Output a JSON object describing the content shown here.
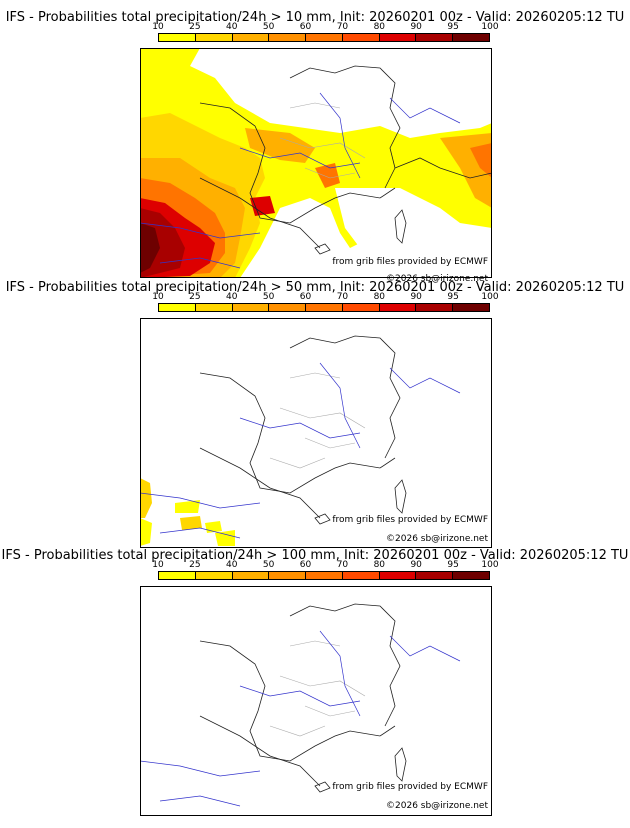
{
  "colorbar": {
    "ticks": [
      "10",
      "25",
      "40",
      "50",
      "60",
      "70",
      "80",
      "90",
      "95",
      "100"
    ],
    "colors": [
      "#ffff00",
      "#ffd700",
      "#ffb000",
      "#ff9000",
      "#ff7400",
      "#ff4a00",
      "#dd0000",
      "#a80000",
      "#6e0000"
    ]
  },
  "colors": {
    "border": "#000000",
    "country_border": "#222222",
    "region_border": "#aaaaaa",
    "rivers": "#3333cc"
  },
  "panels": [
    {
      "title": "IFS - Probabilities total precipitation/24h > 10 mm, Init: 20260201 00z - Valid: 20260205:12 TU",
      "credit": "from grib files provided by ECMWF",
      "copyright": "©2026 sb@irizone.net"
    },
    {
      "title": "IFS - Probabilities total precipitation/24h > 50 mm, Init: 20260201 00z - Valid: 20260205:12 TU",
      "credit": "from grib files provided by ECMWF",
      "copyright": "©2026 sb@irizone.net"
    },
    {
      "title": "IFS - Probabilities total precipitation/24h > 100 mm, Init: 20260201 00z - Valid: 20260205:12 TU",
      "credit": "from grib files provided by ECMWF",
      "copyright": "©2026 sb@irizone.net"
    }
  ]
}
